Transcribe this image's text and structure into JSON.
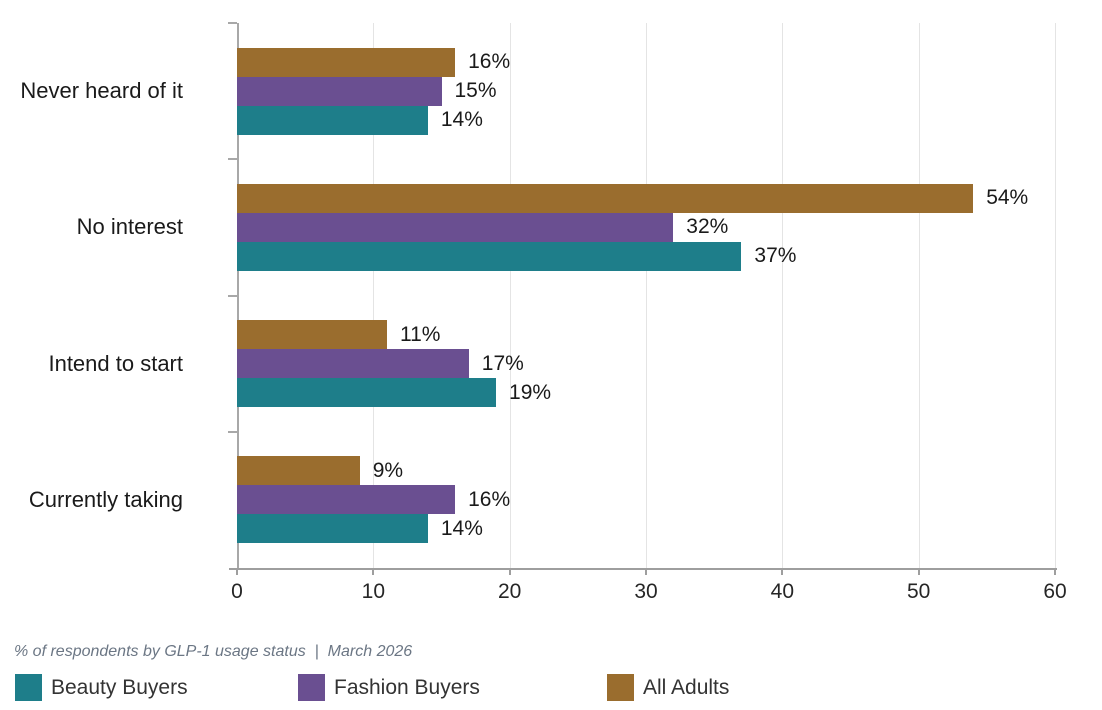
{
  "chart_data": {
    "type": "bar",
    "orientation": "horizontal",
    "title": "",
    "categories": [
      "Never heard of it",
      "No interest",
      "Intend to start",
      "Currently taking"
    ],
    "series": [
      {
        "name": "Beauty Buyers",
        "color": "#1E7E8A",
        "values": [
          14,
          37,
          19,
          14
        ]
      },
      {
        "name": "Fashion Buyers",
        "color": "#6A4F91",
        "values": [
          15,
          32,
          17,
          16
        ]
      },
      {
        "name": "All Adults",
        "color": "#9A6D2E",
        "values": [
          16,
          54,
          11,
          9
        ]
      }
    ],
    "bar_order_top_to_bottom": [
      "All Adults",
      "Fashion Buyers",
      "Beauty Buyers"
    ],
    "value_suffix": "%",
    "xlabel": "",
    "ylabel": "",
    "xlim": [
      0,
      60
    ],
    "xticks": [
      0,
      10,
      20,
      30,
      40,
      50,
      60
    ],
    "grid": "vertical-light",
    "legend_position": "bottom-left",
    "footnote": "% of respondents by GLP-1 usage status  |  March 2026"
  },
  "colors": {
    "axis": "#9e9e9e",
    "grid": "#e4e4e4",
    "text": "#1a1a1a",
    "footnote_text": "#6b7684"
  }
}
